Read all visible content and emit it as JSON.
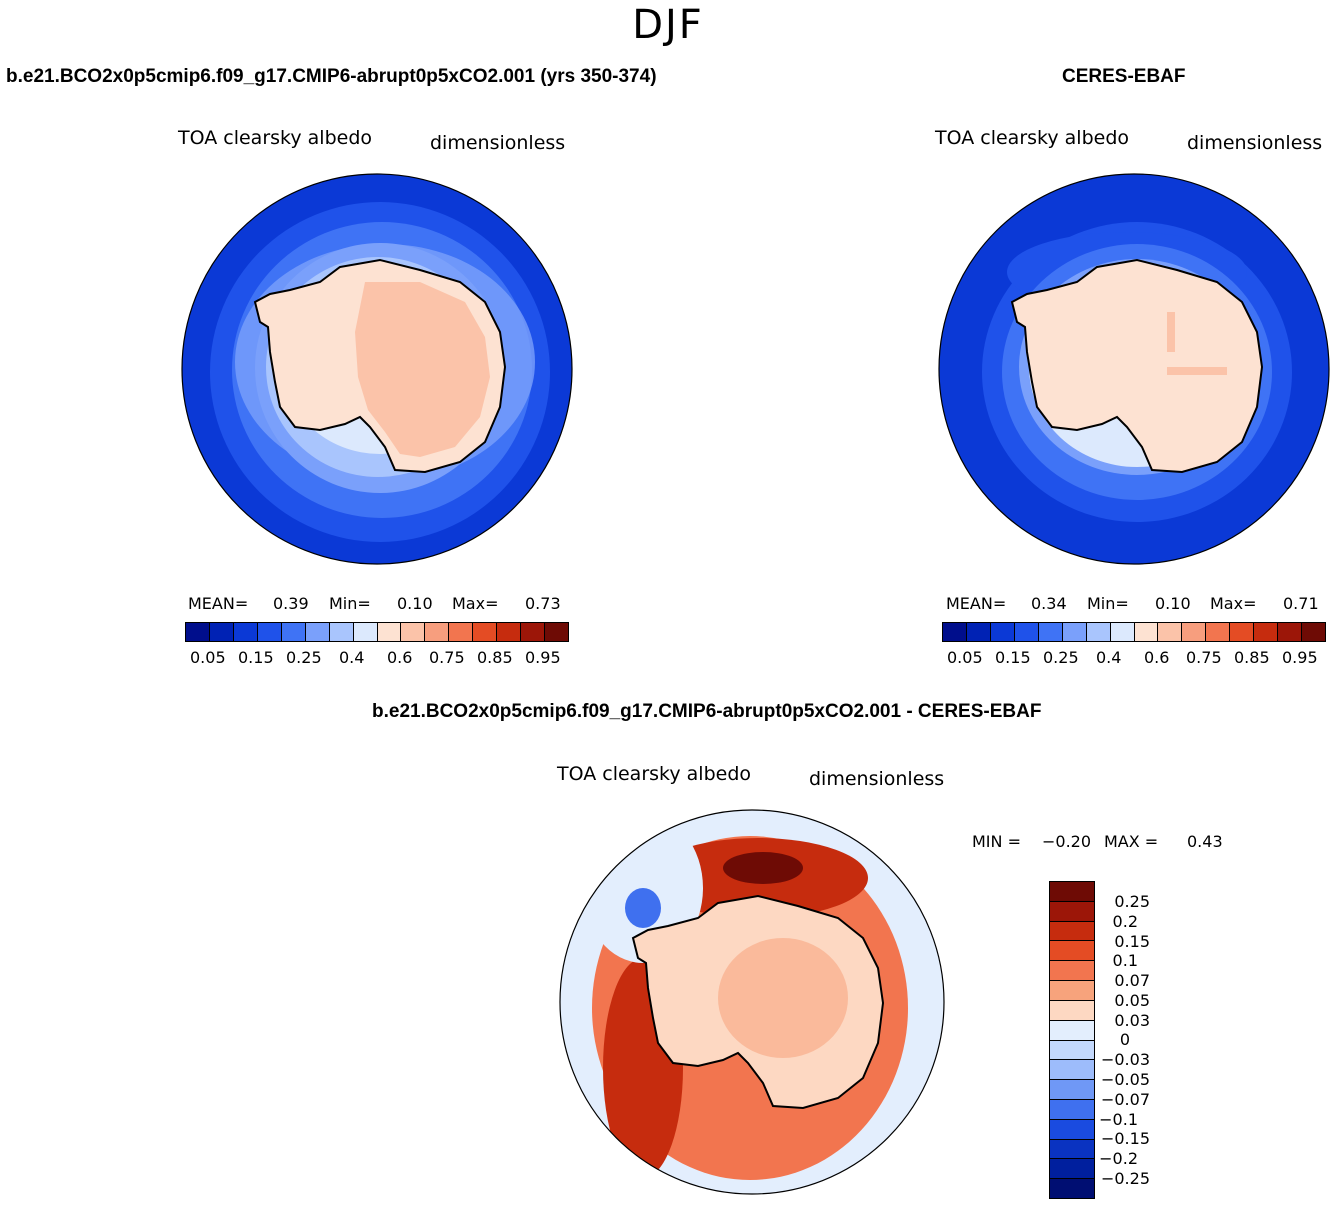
{
  "season": "DJF",
  "colors": {
    "seq": [
      "#000e8c",
      "#0022b4",
      "#0b39d6",
      "#1f52ea",
      "#3f73f5",
      "#7aa0fb",
      "#a9c5fd",
      "#dce9fd",
      "#fde2d2",
      "#fbc3a9",
      "#f79e7e",
      "#f2754f",
      "#e44c24",
      "#c62c0e",
      "#9c1608",
      "#6e0b05"
    ],
    "diff": [
      "#6e0b05",
      "#9c1608",
      "#c62c0e",
      "#e44c24",
      "#f2754f",
      "#f7a37c",
      "#fdd8c2",
      "#e3eefd",
      "#c3d8fc",
      "#9dbcfb",
      "#6f98f6",
      "#3f70ef",
      "#1a4be0",
      "#0a33c1",
      "#001f9e",
      "#000e72"
    ],
    "coast": "#000000"
  },
  "panels": {
    "model": {
      "title": "b.e21.BCO2x0p5cmip6.f09_g17.CMIP6-abrupt0p5xCO2.001 (yrs 350-374)",
      "variable": "TOA clearsky albedo",
      "units": "dimensionless",
      "stats": {
        "mean_label": "MEAN=",
        "mean": "0.39",
        "min_label": "Min=",
        "min": "0.10",
        "max_label": "Max=",
        "max": "0.73"
      },
      "ticks": [
        "0.05",
        "0.15",
        "0.25",
        "0.4",
        "0.6",
        "0.75",
        "0.85",
        "0.95"
      ]
    },
    "obs": {
      "title": "CERES-EBAF",
      "variable": "TOA clearsky albedo",
      "units": "dimensionless",
      "stats": {
        "mean_label": "MEAN=",
        "mean": "0.34",
        "min_label": "Min=",
        "min": "0.10",
        "max_label": "Max=",
        "max": "0.71"
      },
      "ticks": [
        "0.05",
        "0.15",
        "0.25",
        "0.4",
        "0.6",
        "0.75",
        "0.85",
        "0.95"
      ]
    },
    "diff": {
      "title": "b.e21.BCO2x0p5cmip6.f09_g17.CMIP6-abrupt0p5xCO2.001 - CERES-EBAF",
      "variable": "TOA clearsky albedo",
      "units": "dimensionless",
      "stats": {
        "min_label": "MIN =",
        "min": "−0.20",
        "max_label": "MAX =",
        "max": "0.43"
      },
      "ticks": [
        "0.25",
        "0.2",
        "0.15",
        "0.1",
        "0.07",
        "0.05",
        "0.03",
        "0",
        "−0.03",
        "−0.05",
        "−0.07",
        "−0.1",
        "−0.15",
        "−0.2",
        "−0.25"
      ]
    }
  }
}
